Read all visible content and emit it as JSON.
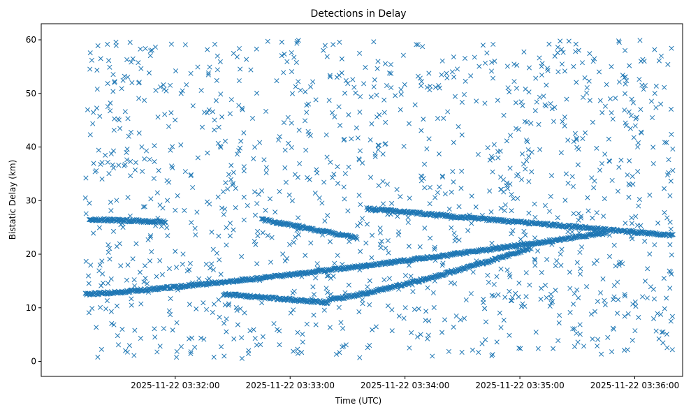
{
  "chart_data": {
    "type": "scatter",
    "title": "Detections in Delay",
    "xlabel": "Time (UTC)",
    "ylabel": "Bistatic Delay (km)",
    "marker": "x",
    "color": "#1f77b4",
    "x_range": [
      "2025-11-22 03:30:50",
      "2025-11-22 03:36:25"
    ],
    "ylim": [
      -2.8,
      63
    ],
    "grid": false,
    "x_ticks": [
      "2025-11-22 03:32:00",
      "2025-11-22 03:33:00",
      "2025-11-22 03:34:00",
      "2025-11-22 03:35:00",
      "2025-11-22 03:36:00"
    ],
    "y_ticks": [
      0,
      10,
      20,
      30,
      40,
      50,
      60
    ],
    "tracks": [
      {
        "start": "2025-11-22 03:31:13",
        "end": "2025-11-22 03:35:45",
        "y_start": 12.5,
        "y_end": 24.0
      },
      {
        "start": "2025-11-22 03:33:20",
        "end": "2025-11-22 03:35:05",
        "y_start": 11.5,
        "y_end": 21.0
      },
      {
        "start": "2025-11-22 03:33:40",
        "end": "2025-11-22 03:36:20",
        "y_start": 28.5,
        "y_end": 23.5
      },
      {
        "start": "2025-11-22 03:32:45",
        "end": "2025-11-22 03:33:35",
        "y_start": 26.5,
        "y_end": 23.0
      },
      {
        "start": "2025-11-22 03:32:25",
        "end": "2025-11-22 03:33:20",
        "y_start": 12.5,
        "y_end": 11.0
      },
      {
        "start": "2025-11-22 03:31:15",
        "end": "2025-11-22 03:31:55",
        "y_start": 26.5,
        "y_end": 26.0
      }
    ],
    "noise_count": 1250
  }
}
